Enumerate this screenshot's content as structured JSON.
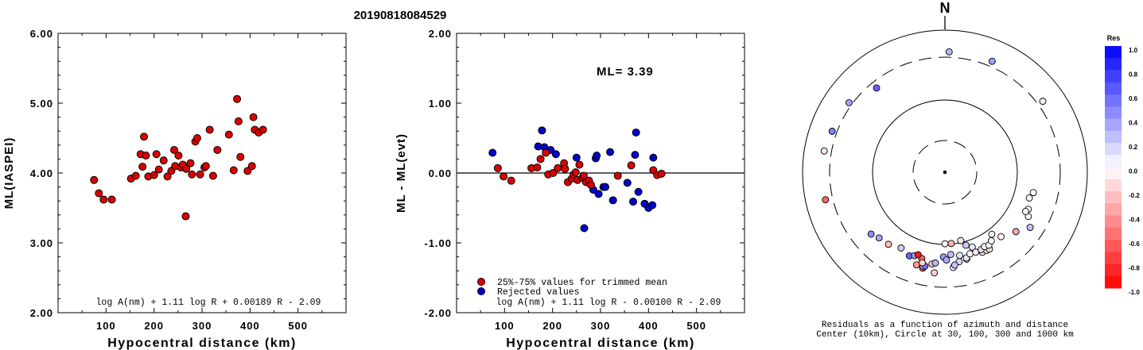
{
  "chart_data": [
    {
      "type": "scatter",
      "title": "20190818084529",
      "xlabel": "Hypocentral distance (km)",
      "ylabel": "ML(IASPEI)",
      "xlim": [
        0,
        600
      ],
      "ylim": [
        2.0,
        6.0
      ],
      "xticks": [
        "100",
        "200",
        "300",
        "400",
        "500"
      ],
      "yticks": [
        "2.00",
        "3.00",
        "4.00",
        "5.00",
        "6.00"
      ],
      "formula": "log A(nm) + 1.11 log R + 0.00189 R - 2.09",
      "marker_color": "#dd0000",
      "points": [
        [
          75,
          3.9
        ],
        [
          85,
          3.71
        ],
        [
          95,
          3.62
        ],
        [
          112,
          3.62
        ],
        [
          152,
          3.92
        ],
        [
          162,
          3.96
        ],
        [
          172,
          4.27
        ],
        [
          176,
          4.09
        ],
        [
          179,
          4.52
        ],
        [
          183,
          4.25
        ],
        [
          188,
          3.95
        ],
        [
          200,
          3.97
        ],
        [
          205,
          4.27
        ],
        [
          210,
          4.05
        ],
        [
          220,
          4.18
        ],
        [
          228,
          3.95
        ],
        [
          236,
          4.03
        ],
        [
          242,
          4.33
        ],
        [
          244,
          4.1
        ],
        [
          251,
          4.25
        ],
        [
          256,
          4.08
        ],
        [
          260,
          4.12
        ],
        [
          266,
          3.38
        ],
        [
          267,
          4.06
        ],
        [
          276,
          4.14
        ],
        [
          279,
          3.98
        ],
        [
          286,
          4.45
        ],
        [
          290,
          4.5
        ],
        [
          296,
          3.98
        ],
        [
          305,
          4.08
        ],
        [
          308,
          4.1
        ],
        [
          316,
          4.62
        ],
        [
          323,
          3.96
        ],
        [
          332,
          4.33
        ],
        [
          356,
          4.55
        ],
        [
          366,
          4.04
        ],
        [
          373,
          5.06
        ],
        [
          376,
          4.74
        ],
        [
          380,
          4.23
        ],
        [
          395,
          4.03
        ],
        [
          404,
          4.1
        ],
        [
          407,
          4.8
        ],
        [
          410,
          4.62
        ],
        [
          418,
          4.58
        ],
        [
          427,
          4.62
        ]
      ]
    },
    {
      "type": "scatter",
      "xlabel": "Hypocentral distance (km)",
      "ylabel": "ML - ML(evt)",
      "xlim": [
        0,
        600
      ],
      "ylim": [
        -2.0,
        2.0
      ],
      "xticks": [
        "100",
        "200",
        "300",
        "400",
        "500"
      ],
      "yticks": [
        "-2.00",
        "-1.00",
        "0.00",
        "1.00",
        "2.00"
      ],
      "annotation": "ML= 3.39",
      "formula": "log A(nm) + 1.11 log R - 0.00100 R - 2.09",
      "zero_line": 0,
      "series": [
        {
          "name": "25%-75% values for trimmed mean",
          "color": "#dd0000",
          "points": [
            [
              86,
              0.07
            ],
            [
              98,
              -0.05
            ],
            [
              114,
              -0.11
            ],
            [
              156,
              0.07
            ],
            [
              168,
              0.08
            ],
            [
              175,
              0.2
            ],
            [
              186,
              0.29
            ],
            [
              191,
              -0.02
            ],
            [
              201,
              0.0
            ],
            [
              211,
              0.07
            ],
            [
              224,
              0.14
            ],
            [
              226,
              0.06
            ],
            [
              232,
              -0.13
            ],
            [
              240,
              -0.08
            ],
            [
              244,
              -0.02
            ],
            [
              248,
              0.01
            ],
            [
              252,
              -0.1
            ],
            [
              256,
              0.12
            ],
            [
              262,
              -0.07
            ],
            [
              265,
              -0.04
            ],
            [
              270,
              -0.13
            ],
            [
              276,
              -0.11
            ],
            [
              280,
              -0.17
            ],
            [
              336,
              -0.04
            ],
            [
              364,
              0.11
            ],
            [
              410,
              0.04
            ],
            [
              418,
              -0.03
            ],
            [
              427,
              -0.01
            ]
          ]
        },
        {
          "name": "Rejected values",
          "color": "#0000cc",
          "points": [
            [
              75,
              0.29
            ],
            [
              170,
              0.38
            ],
            [
              178,
              0.61
            ],
            [
              183,
              0.37
            ],
            [
              196,
              0.33
            ],
            [
              207,
              0.27
            ],
            [
              250,
              0.22
            ],
            [
              266,
              -0.79
            ],
            [
              285,
              -0.24
            ],
            [
              290,
              0.21
            ],
            [
              292,
              0.25
            ],
            [
              296,
              -0.3
            ],
            [
              306,
              -0.2
            ],
            [
              310,
              -0.2
            ],
            [
              320,
              0.3
            ],
            [
              326,
              -0.39
            ],
            [
              356,
              -0.14
            ],
            [
              368,
              -0.41
            ],
            [
              372,
              0.26
            ],
            [
              374,
              0.58
            ],
            [
              379,
              -0.27
            ],
            [
              392,
              -0.44
            ],
            [
              400,
              -0.5
            ],
            [
              408,
              -0.46
            ],
            [
              410,
              0.22
            ]
          ]
        }
      ]
    },
    {
      "type": "scatter",
      "north_label": "N",
      "caption": [
        "Residuals as a function of azimuth and distance",
        "Center (10km), Circle at 30, 100, 300 and 1000 km"
      ],
      "colorbar": {
        "title": "Res",
        "labels": [
          "1.0",
          "0.8",
          "0.6",
          "0.4",
          "0.2",
          "0.0",
          "-0.2",
          "-0.4",
          "-0.6",
          "-0.8",
          "-1.0"
        ],
        "pos_color": "#0000ff",
        "neg_color": "#ff0000"
      },
      "rings_km": [
        10,
        30,
        100,
        300,
        1000
      ],
      "points_azimuth_distance_residual": [
        [
          2,
          382,
          0.29
        ],
        [
          23,
          383,
          0.38
        ],
        [
          321,
          253,
          0.61
        ],
        [
          306,
          346,
          0.37
        ],
        [
          54,
          385,
          0.07
        ],
        [
          290,
          370,
          0.5
        ],
        [
          280,
          415,
          -0.11
        ],
        [
          257,
          415,
          -0.6
        ],
        [
          123,
          211,
          0.25
        ],
        [
          118,
          176,
          0.02
        ],
        [
          114,
          162,
          0.0
        ],
        [
          116,
          156,
          0.0
        ],
        [
          107,
          150,
          -0.03
        ],
        [
          103,
          160,
          0.0
        ],
        [
          143,
          115,
          0.05
        ],
        [
          160,
          121,
          0.08
        ],
        [
          170,
          137,
          0.1
        ],
        [
          175,
          182,
          0.04
        ],
        [
          186,
          210,
          -0.2
        ],
        [
          180,
          98,
          0.05
        ],
        [
          167,
          94,
          -0.1
        ],
        [
          175,
          98,
          -0.3
        ],
        [
          164,
          110,
          0.2
        ],
        [
          188,
          169,
          -0.25
        ],
        [
          186,
          163,
          0.28
        ],
        [
          181,
          138,
          0.39
        ],
        [
          179,
          149,
          0.33
        ],
        [
          176,
          130,
          0.25
        ],
        [
          171,
          160,
          0.16
        ],
        [
          174,
          172,
          0.22
        ],
        [
          166,
          156,
          -0.02
        ],
        [
          166,
          151,
          0.07
        ],
        [
          163,
          140,
          0.0
        ],
        [
          159,
          141,
          -0.07
        ],
        [
          155,
          151,
          -0.1
        ],
        [
          152,
          152,
          -0.11
        ],
        [
          150,
          153,
          -0.13
        ],
        [
          155,
          140,
          0.14
        ],
        [
          152,
          136,
          0.06
        ],
        [
          149,
          139,
          0.0
        ],
        [
          146,
          131,
          0.0
        ],
        [
          203,
          161,
          0.6
        ],
        [
          200,
          153,
          0.4
        ],
        [
          210,
          148,
          0.2
        ],
        [
          218,
          164,
          -0.25
        ],
        [
          193,
          196,
          -0.55
        ],
        [
          197,
          188,
          -0.4
        ],
        [
          193,
          188,
          -0.15
        ],
        [
          192,
          184,
          0.55
        ],
        [
          230,
          185,
          0.45
        ],
        [
          225,
          170,
          0.35
        ],
        [
          139,
          140,
          -0.05
        ],
        [
          130,
          168,
          -0.35
        ],
        [
          195,
          155,
          -0.6
        ],
        [
          198,
          145,
          -0.9
        ],
        [
          194,
          172,
          -0.2
        ]
      ]
    }
  ]
}
